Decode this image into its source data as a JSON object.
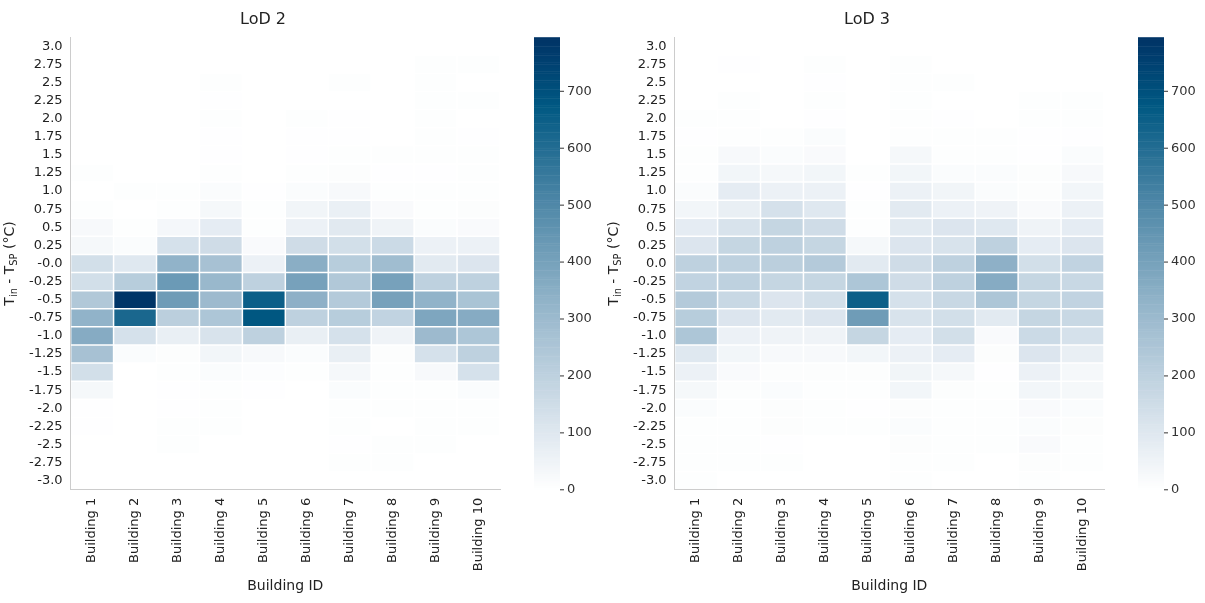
{
  "chart_data": [
    {
      "type": "heatmap",
      "title": "LoD 2",
      "xlabel": "Building ID",
      "ylabel": "T$_{in}$ - T$_{SP}$ (°C)",
      "clabel": null,
      "categories": [
        "Building 1",
        "Building 2",
        "Building 3",
        "Building 4",
        "Building 5",
        "Building 6",
        "Building 7",
        "Building 8",
        "Building 9",
        "Building 10"
      ],
      "y_categories": [
        "3.0",
        "2.75",
        "2.5",
        "2.25",
        "2.0",
        "1.75",
        "1.5",
        "1.25",
        "1.0",
        "0.75",
        "0.5",
        "0.25",
        "-0.0",
        "-0.25",
        "-0.5",
        "-0.75",
        "-1.0",
        "-1.25",
        "-1.5",
        "-1.75",
        "-2.0",
        "-2.25",
        "-2.5",
        "-2.75",
        "-3.0"
      ],
      "cells": [
        [
          null,
          null,
          null,
          null,
          null,
          null,
          null,
          null,
          null,
          null
        ],
        [
          null,
          null,
          null,
          null,
          null,
          null,
          null,
          null,
          5,
          5
        ],
        [
          null,
          null,
          null,
          5,
          null,
          null,
          5,
          null,
          5,
          null
        ],
        [
          null,
          null,
          null,
          3,
          null,
          null,
          null,
          null,
          5,
          5
        ],
        [
          null,
          null,
          null,
          5,
          null,
          5,
          3,
          null,
          5,
          null
        ],
        [
          null,
          null,
          null,
          3,
          null,
          3,
          3,
          null,
          5,
          3
        ],
        [
          null,
          null,
          null,
          3,
          null,
          3,
          5,
          5,
          5,
          5
        ],
        [
          5,
          null,
          null,
          5,
          null,
          5,
          10,
          3,
          3,
          5
        ],
        [
          null,
          5,
          5,
          15,
          3,
          15,
          25,
          5,
          5,
          5
        ],
        [
          5,
          null,
          5,
          30,
          5,
          45,
          65,
          20,
          5,
          10
        ],
        [
          25,
          5,
          35,
          80,
          5,
          60,
          95,
          50,
          15,
          20
        ],
        [
          30,
          15,
          130,
          150,
          20,
          150,
          140,
          160,
          60,
          60
        ],
        [
          140,
          100,
          330,
          270,
          60,
          350,
          220,
          290,
          90,
          110
        ],
        [
          140,
          220,
          430,
          310,
          200,
          400,
          240,
          400,
          200,
          200
        ],
        [
          240,
          790,
          420,
          300,
          650,
          340,
          230,
          400,
          330,
          260
        ],
        [
          330,
          620,
          210,
          250,
          680,
          200,
          220,
          190,
          380,
          360
        ],
        [
          360,
          130,
          70,
          120,
          200,
          70,
          130,
          50,
          300,
          250
        ],
        [
          270,
          15,
          10,
          40,
          25,
          15,
          70,
          10,
          130,
          200
        ],
        [
          140,
          null,
          5,
          15,
          8,
          5,
          30,
          5,
          25,
          130
        ],
        [
          30,
          null,
          3,
          5,
          3,
          null,
          15,
          5,
          5,
          15
        ],
        [
          3,
          null,
          3,
          5,
          null,
          null,
          5,
          5,
          5,
          5
        ],
        [
          3,
          null,
          5,
          5,
          null,
          null,
          5,
          null,
          5,
          5
        ],
        [
          null,
          null,
          5,
          null,
          null,
          null,
          3,
          5,
          5,
          null
        ],
        [
          null,
          null,
          null,
          null,
          null,
          null,
          5,
          5,
          null,
          null
        ],
        [
          null,
          null,
          null,
          null,
          null,
          null,
          null,
          null,
          null,
          null
        ]
      ],
      "clim": [
        0,
        795
      ],
      "cticks": [
        0,
        100,
        200,
        300,
        400,
        500,
        600,
        700
      ]
    },
    {
      "type": "heatmap",
      "title": "LoD 3",
      "xlabel": "Building ID",
      "ylabel": "T$_{in}$ - T$_{SP}$ (°C)",
      "categories": [
        "Building 1",
        "Building 2",
        "Building 3",
        "Building 4",
        "Building 5",
        "Building 6",
        "Building 7",
        "Building 8",
        "Building 9",
        "Building 10"
      ],
      "y_categories": [
        "3.0",
        "2.75",
        "2.5",
        "2.25",
        "2.0",
        "1.75",
        "1.5",
        "1.25",
        "1.0",
        "0.75",
        "0.5",
        "0.25",
        "0.0",
        "-0.25",
        "-0.5",
        "-0.75",
        "-1.0",
        "-1.25",
        "-1.5",
        "-1.75",
        "-2.0",
        "-2.25",
        "-2.5",
        "-2.75",
        "-3.0"
      ],
      "cells": [
        [
          null,
          null,
          null,
          null,
          null,
          null,
          null,
          null,
          null,
          null
        ],
        [
          null,
          3,
          null,
          5,
          null,
          5,
          null,
          null,
          null,
          null
        ],
        [
          null,
          null,
          null,
          3,
          null,
          5,
          5,
          null,
          null,
          null
        ],
        [
          null,
          5,
          null,
          5,
          null,
          5,
          null,
          null,
          5,
          5
        ],
        [
          5,
          5,
          null,
          3,
          null,
          5,
          3,
          null,
          5,
          5
        ],
        [
          3,
          5,
          5,
          15,
          null,
          5,
          5,
          5,
          3,
          3
        ],
        [
          5,
          25,
          15,
          20,
          null,
          30,
          5,
          5,
          3,
          15
        ],
        [
          5,
          40,
          30,
          40,
          5,
          40,
          15,
          15,
          10,
          25
        ],
        [
          15,
          80,
          60,
          60,
          3,
          60,
          45,
          15,
          10,
          40
        ],
        [
          40,
          70,
          130,
          100,
          5,
          90,
          60,
          50,
          20,
          60
        ],
        [
          80,
          120,
          180,
          150,
          5,
          90,
          110,
          100,
          50,
          80
        ],
        [
          110,
          180,
          200,
          180,
          30,
          110,
          120,
          200,
          80,
          110
        ],
        [
          200,
          200,
          210,
          230,
          90,
          150,
          200,
          340,
          140,
          190
        ],
        [
          190,
          200,
          180,
          180,
          250,
          150,
          200,
          360,
          180,
          170
        ],
        [
          230,
          170,
          110,
          140,
          650,
          130,
          170,
          250,
          180,
          190
        ],
        [
          220,
          110,
          90,
          110,
          420,
          120,
          140,
          90,
          180,
          170
        ],
        [
          250,
          60,
          50,
          50,
          180,
          80,
          140,
          20,
          160,
          130
        ],
        [
          100,
          40,
          25,
          25,
          40,
          60,
          80,
          10,
          110,
          70
        ],
        [
          60,
          20,
          10,
          10,
          10,
          45,
          30,
          3,
          60,
          30
        ],
        [
          30,
          10,
          15,
          5,
          5,
          40,
          10,
          5,
          40,
          30
        ],
        [
          15,
          5,
          10,
          5,
          3,
          10,
          5,
          5,
          20,
          15
        ],
        [
          5,
          5,
          10,
          5,
          5,
          15,
          5,
          5,
          15,
          10
        ],
        [
          5,
          5,
          3,
          null,
          null,
          10,
          5,
          5,
          20,
          5
        ],
        [
          5,
          5,
          5,
          null,
          null,
          5,
          5,
          null,
          10,
          5
        ],
        [
          5,
          null,
          null,
          null,
          null,
          5,
          null,
          null,
          5,
          null
        ]
      ],
      "clim": [
        0,
        795
      ],
      "cticks": [
        0,
        100,
        200,
        300,
        400,
        500,
        600,
        700
      ]
    }
  ]
}
